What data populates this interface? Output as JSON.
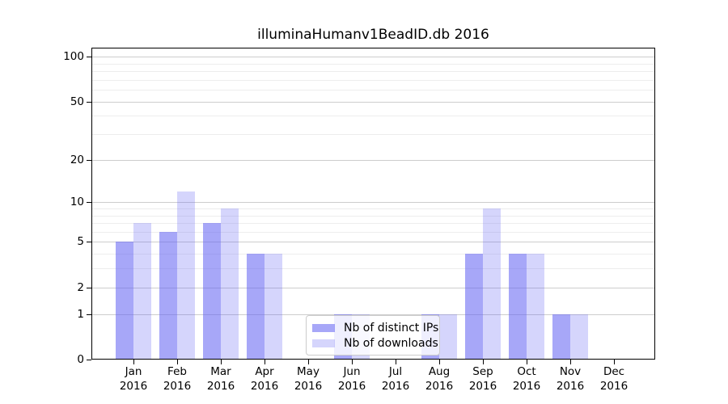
{
  "title": "illuminaHumanv1BeadID.db 2016",
  "chart_data": {
    "type": "bar",
    "title": "illuminaHumanv1BeadID.db 2016",
    "categories": [
      "Jan",
      "Feb",
      "Mar",
      "Apr",
      "May",
      "Jun",
      "Jul",
      "Aug",
      "Sep",
      "Oct",
      "Nov",
      "Dec"
    ],
    "category_year": "2016",
    "series": [
      {
        "name": "Nb of distinct IPs",
        "values": [
          5,
          6,
          7,
          4,
          0,
          1,
          0,
          1,
          4,
          4,
          1,
          0
        ]
      },
      {
        "name": "Nb of downloads",
        "values": [
          7,
          12,
          9,
          4,
          0,
          1,
          0,
          1,
          9,
          4,
          1,
          0
        ]
      }
    ],
    "yscale": "log10(value+1)",
    "y_major_ticks": [
      0,
      1,
      2,
      5,
      10,
      20,
      50,
      100
    ],
    "y_minor_ticks": [
      3,
      4,
      6,
      7,
      8,
      9,
      30,
      40,
      60,
      70,
      80,
      90
    ],
    "ylim": [
      0,
      114
    ],
    "grid": true,
    "legend_position": "lower center"
  },
  "colors": {
    "ips_bar": "rgba(100,100,243,0.57)",
    "downloads_bar": "rgba(100,100,243,0.27)",
    "grid_major": "#cdcdcd",
    "grid_minor": "#ededed",
    "axis_frame": "#000000",
    "legend_border": "#cccccc"
  }
}
